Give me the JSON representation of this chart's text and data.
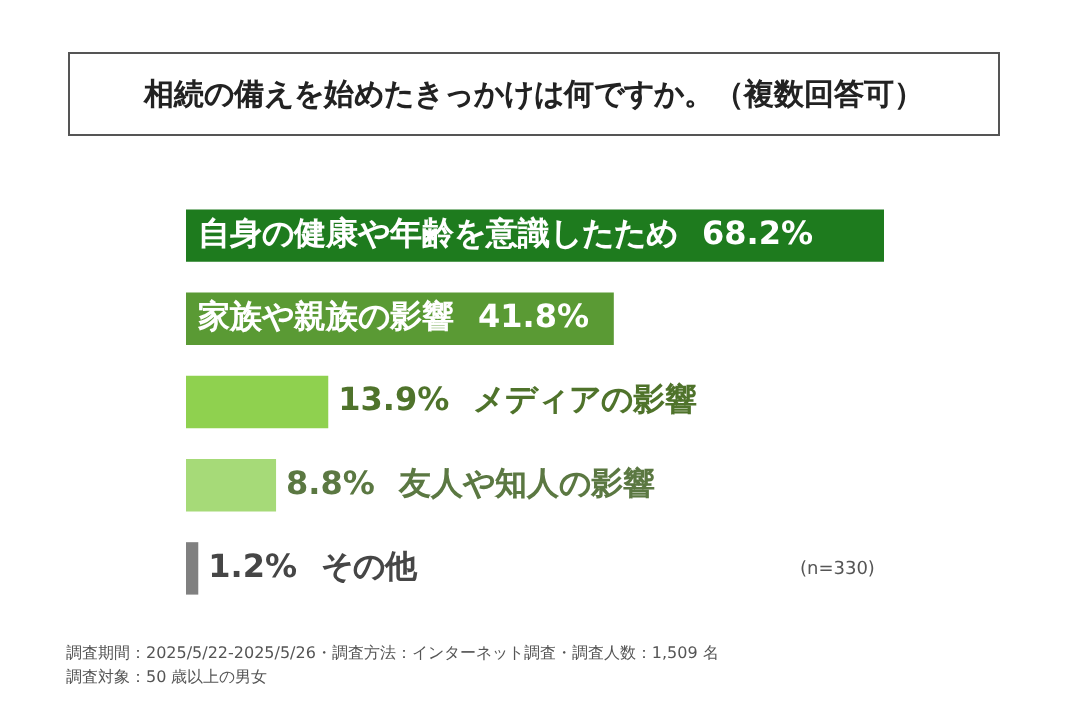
{
  "chart_data": {
    "type": "bar",
    "orientation": "horizontal",
    "title": "相続の備えを始めたきっかけは何ですか。（複数回答可）",
    "categories": [
      "自身の健康や年齢を意識したため",
      "家族や親族の影響",
      "メディアの影響",
      "友人や知人の影響",
      "その他"
    ],
    "values": [
      68.2,
      41.8,
      13.9,
      8.8,
      1.2
    ],
    "value_labels": [
      "68.2%",
      "41.8%",
      "13.9%",
      "8.8%",
      "1.2%"
    ],
    "colors": [
      "#1e7b1e",
      "#5a9a34",
      "#8fd14f",
      "#a6da78",
      "#808080"
    ],
    "annotations": [
      "(n=330)",
      "調査期間：2025/5/22-2025/5/26・調査方法：インターネット調査・調査人数：1,509 名",
      "調査対象：50 歳以上の男女"
    ]
  }
}
